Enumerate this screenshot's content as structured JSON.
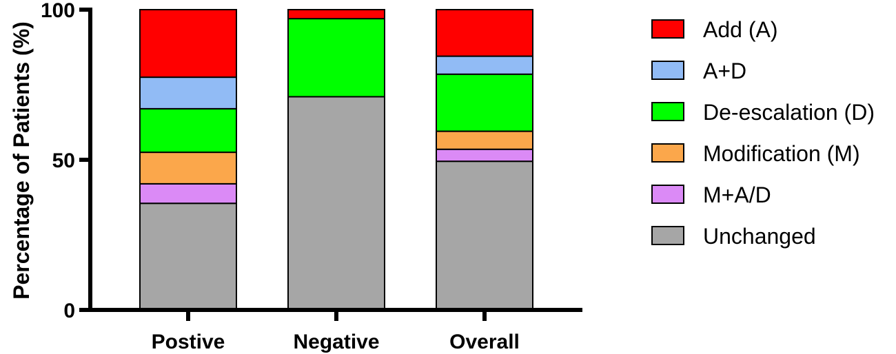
{
  "chart_data": {
    "type": "bar",
    "stacked": true,
    "categories": [
      "Postive",
      "Negative",
      "Overall"
    ],
    "series": [
      {
        "name": "Unchanged",
        "color": "#A6A6A6",
        "values": [
          35.5,
          71,
          49.5
        ]
      },
      {
        "name": "M+A/D",
        "color": "#DB8AF6",
        "values": [
          6.5,
          0,
          4
        ]
      },
      {
        "name": "Modification (M)",
        "color": "#FBA74B",
        "values": [
          10.5,
          0,
          6
        ]
      },
      {
        "name": "De-escalation (D)",
        "color": "#00FF00",
        "values": [
          14.5,
          26,
          19
        ]
      },
      {
        "name": "A+D",
        "color": "#91BBF5",
        "values": [
          10.5,
          0,
          6
        ]
      },
      {
        "name": "Add (A)",
        "color": "#FF0000",
        "values": [
          22.5,
          3,
          15.5
        ]
      }
    ],
    "legend_order": [
      "Add (A)",
      "A+D",
      "De-escalation (D)",
      "Modification (M)",
      "M+A/D",
      "Unchanged"
    ],
    "legend_position": "right",
    "ylabel": "Percentage of Patients (%)",
    "xlabel": "",
    "ylim": [
      0,
      100
    ],
    "yticks": [
      0,
      50,
      100
    ],
    "grid": false
  }
}
